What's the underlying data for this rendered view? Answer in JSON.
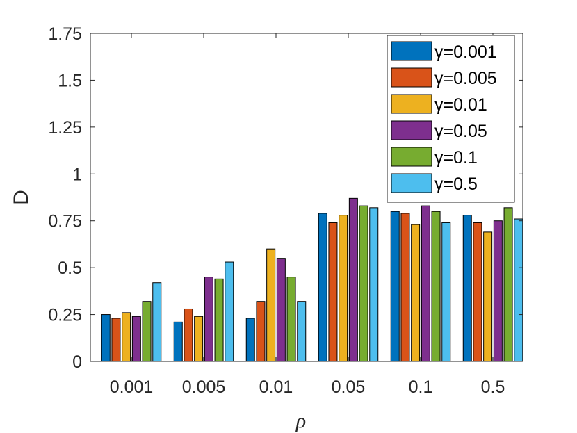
{
  "chart_data": {
    "type": "bar",
    "categories": [
      "0.001",
      "0.005",
      "0.01",
      "0.05",
      "0.1",
      "0.5"
    ],
    "series": [
      {
        "name": "γ=0.001",
        "color": "#0072BD",
        "values": [
          0.25,
          0.21,
          0.23,
          0.79,
          0.8,
          0.78
        ]
      },
      {
        "name": "γ=0.005",
        "color": "#D95319",
        "values": [
          0.23,
          0.28,
          0.32,
          0.74,
          0.79,
          0.74
        ]
      },
      {
        "name": "γ=0.01",
        "color": "#EDB120",
        "values": [
          0.26,
          0.24,
          0.6,
          0.78,
          0.73,
          0.69
        ]
      },
      {
        "name": "γ=0.05",
        "color": "#7E2F8E",
        "values": [
          0.24,
          0.45,
          0.55,
          0.87,
          0.83,
          0.75
        ]
      },
      {
        "name": "γ=0.1",
        "color": "#77AC30",
        "values": [
          0.32,
          0.44,
          0.45,
          0.83,
          0.8,
          0.82
        ]
      },
      {
        "name": "γ=0.5",
        "color": "#4DBEEE",
        "values": [
          0.42,
          0.53,
          0.32,
          0.82,
          0.74,
          0.76
        ]
      }
    ],
    "xlabel": "ρ",
    "ylabel": "D",
    "ylim": [
      0,
      1.75
    ],
    "yticks": [
      "0",
      "0.25",
      "0.5",
      "0.75",
      "1",
      "1.25",
      "1.5",
      "1.75"
    ],
    "legend": {
      "position": "top-right"
    },
    "grid": false
  }
}
